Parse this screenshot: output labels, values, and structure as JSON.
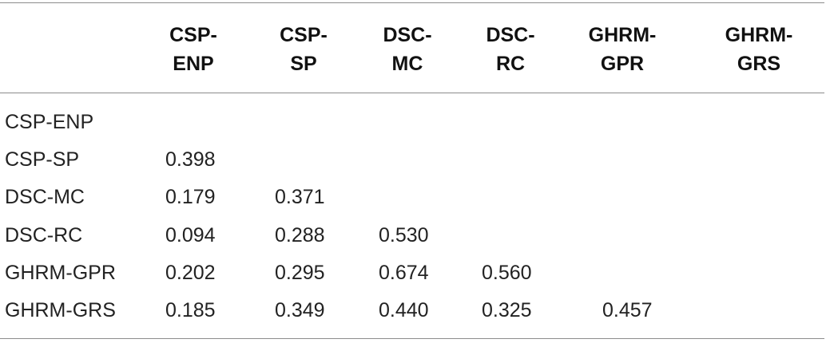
{
  "table": {
    "columns": [
      {
        "line1": "CSP-",
        "line2": "ENP"
      },
      {
        "line1": "CSP-",
        "line2": "SP"
      },
      {
        "line1": "DSC-",
        "line2": "MC"
      },
      {
        "line1": "DSC-",
        "line2": "RC"
      },
      {
        "line1": "GHRM-",
        "line2": "GPR"
      },
      {
        "line1": "GHRM-",
        "line2": "GRS"
      }
    ],
    "rows": [
      {
        "label": "CSP-ENP",
        "values": []
      },
      {
        "label": "CSP-SP",
        "values": [
          "0.398"
        ]
      },
      {
        "label": "DSC-MC",
        "values": [
          "0.179",
          "0.371"
        ]
      },
      {
        "label": "DSC-RC",
        "values": [
          "0.094",
          "0.288",
          "0.530"
        ]
      },
      {
        "label": "GHRM-GPR",
        "values": [
          "0.202",
          "0.295",
          "0.674",
          "0.560"
        ]
      },
      {
        "label": "GHRM-GRS",
        "values": [
          "0.185",
          "0.349",
          "0.440",
          "0.325",
          "0.457"
        ]
      }
    ]
  }
}
